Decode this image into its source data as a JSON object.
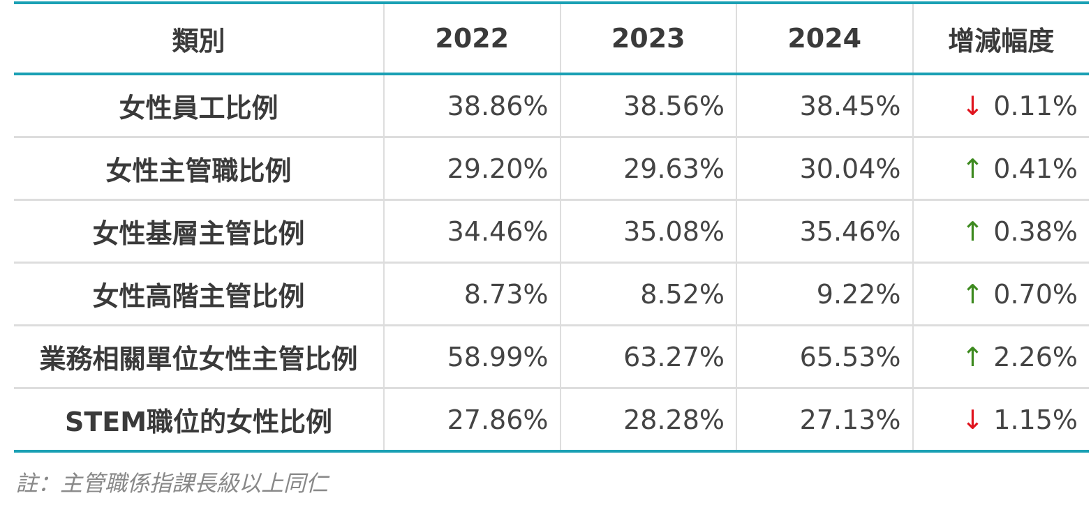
{
  "table": {
    "header": [
      "類別",
      "2022",
      "2023",
      "2024",
      "增減幅度"
    ],
    "rows": [
      {
        "label": "女性員工比例",
        "values": [
          "38.86%",
          "38.56%",
          "38.45%"
        ],
        "change": {
          "arrow": "↓",
          "value": "0.11%",
          "color": "#e0141e"
        }
      },
      {
        "label": "女性主管職比例",
        "values": [
          "29.20%",
          "29.63%",
          "30.04%"
        ],
        "change": {
          "arrow": "↑",
          "value": "0.41%",
          "color": "#3d8a1f"
        }
      },
      {
        "label": "女性基層主管比例",
        "values": [
          "34.46%",
          "35.08%",
          "35.46%"
        ],
        "change": {
          "arrow": "↑",
          "value": "0.38%",
          "color": "#3d8a1f"
        }
      },
      {
        "label": "女性高階主管比例",
        "values": [
          "8.73%",
          "8.52%",
          "9.22%"
        ],
        "change": {
          "arrow": "↑",
          "value": "0.70%",
          "color": "#3d8a1f"
        }
      },
      {
        "label": "業務相關單位女性主管比例",
        "values": [
          "58.99%",
          "63.27%",
          "65.53%"
        ],
        "change": {
          "arrow": "↑",
          "value": "2.26%",
          "color": "#3d8a1f"
        }
      },
      {
        "label": "STEM職位的女性比例",
        "values": [
          "27.86%",
          "28.28%",
          "27.13%"
        ],
        "change": {
          "arrow": "↓",
          "value": "1.15%",
          "color": "#e0141e"
        }
      }
    ]
  },
  "note": "註：主管職係指課長級以上同仁"
}
